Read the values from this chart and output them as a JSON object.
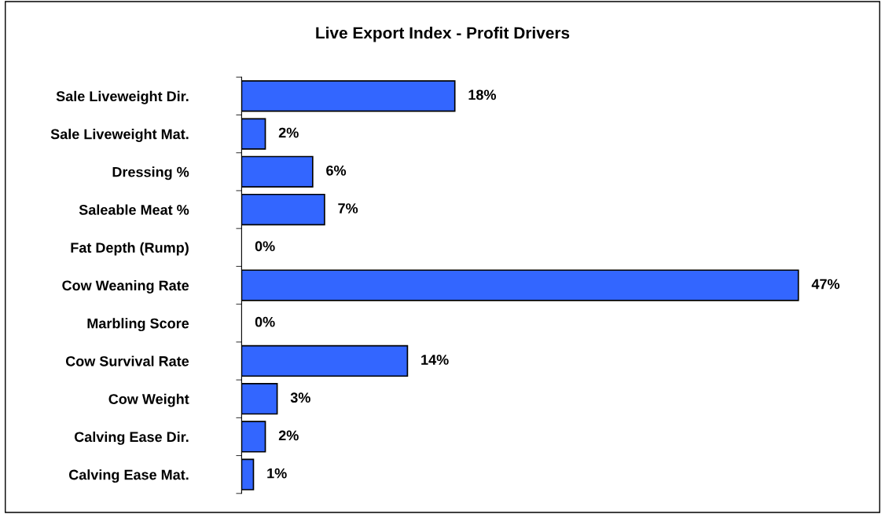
{
  "chart_data": {
    "type": "bar",
    "orientation": "horizontal",
    "title": "Live Export Index - Profit Drivers",
    "categories": [
      "Sale Liveweight Dir.",
      "Sale Liveweight Mat.",
      "Dressing %",
      "Saleable Meat %",
      "Fat Depth (Rump)",
      "Cow Weaning Rate",
      "Marbling Score",
      "Cow Survival Rate",
      "Cow Weight",
      "Calving Ease Dir.",
      "Calving Ease Mat."
    ],
    "values": [
      18,
      2,
      6,
      7,
      0,
      47,
      0,
      14,
      3,
      2,
      1
    ],
    "value_labels": [
      "18%",
      "2%",
      "6%",
      "7%",
      "0%",
      "47%",
      "0%",
      "14%",
      "3%",
      "2%",
      "1%"
    ],
    "color": "#3366ff",
    "tick_labels": "y",
    "grid": false,
    "legend": false
  }
}
